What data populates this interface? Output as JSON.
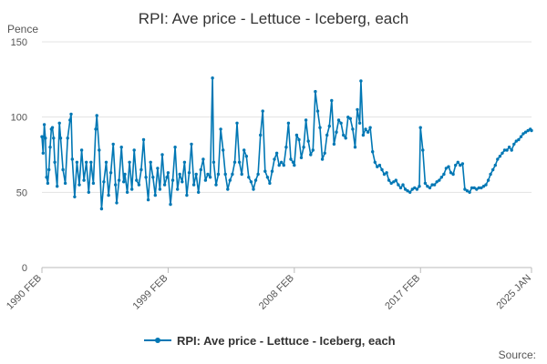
{
  "chart_data": {
    "type": "line",
    "title": "RPI: Ave price - Lettuce - Iceberg, each",
    "ylabel": "Pence",
    "xlabel": "",
    "ylim": [
      0,
      150
    ],
    "yticks": [
      0,
      50,
      100,
      150
    ],
    "xtick_labels": [
      "1990 FEB",
      "1999 FEB",
      "2008 FEB",
      "2017 FEB",
      "2025 JAN"
    ],
    "x_start": "1990-02",
    "x_end": "2025-01",
    "grid": "horizontal",
    "legend_position": "bottom-center",
    "color": "#0077b4",
    "series": [
      {
        "name": "RPI: Ave price - Lettuce - Iceberg, each",
        "points": [
          [
            "1990-02",
            87
          ],
          [
            "1990-03",
            76
          ],
          [
            "1990-04",
            95
          ],
          [
            "1990-05",
            86
          ],
          [
            "1990-06",
            60
          ],
          [
            "1990-07",
            56
          ],
          [
            "1990-08",
            65
          ],
          [
            "1990-09",
            80
          ],
          [
            "1990-10",
            92
          ],
          [
            "1990-11",
            93
          ],
          [
            "1990-12",
            86
          ],
          [
            "1991-01",
            70
          ],
          [
            "1991-03",
            54
          ],
          [
            "1991-05",
            96
          ],
          [
            "1991-06",
            86
          ],
          [
            "1991-08",
            65
          ],
          [
            "1991-10",
            56
          ],
          [
            "1991-12",
            86
          ],
          [
            "1992-02",
            98
          ],
          [
            "1992-03",
            102
          ],
          [
            "1992-04",
            72
          ],
          [
            "1992-06",
            47
          ],
          [
            "1992-08",
            70
          ],
          [
            "1992-10",
            55
          ],
          [
            "1992-12",
            78
          ],
          [
            "1993-02",
            58
          ],
          [
            "1993-04",
            70
          ],
          [
            "1993-06",
            50
          ],
          [
            "1993-08",
            70
          ],
          [
            "1993-10",
            56
          ],
          [
            "1993-12",
            92
          ],
          [
            "1994-01",
            101
          ],
          [
            "1994-03",
            78
          ],
          [
            "1994-05",
            39
          ],
          [
            "1994-07",
            57
          ],
          [
            "1994-09",
            70
          ],
          [
            "1994-11",
            48
          ],
          [
            "1995-01",
            63
          ],
          [
            "1995-03",
            82
          ],
          [
            "1995-05",
            55
          ],
          [
            "1995-06",
            43
          ],
          [
            "1995-08",
            58
          ],
          [
            "1995-10",
            80
          ],
          [
            "1995-12",
            57
          ],
          [
            "1996-01",
            62
          ],
          [
            "1996-03",
            50
          ],
          [
            "1996-05",
            70
          ],
          [
            "1996-07",
            52
          ],
          [
            "1996-09",
            78
          ],
          [
            "1996-11",
            58
          ],
          [
            "1997-01",
            55
          ],
          [
            "1997-03",
            65
          ],
          [
            "1997-05",
            85
          ],
          [
            "1997-07",
            60
          ],
          [
            "1997-09",
            45
          ],
          [
            "1997-11",
            70
          ],
          [
            "1998-01",
            60
          ],
          [
            "1998-03",
            48
          ],
          [
            "1998-05",
            66
          ],
          [
            "1998-07",
            52
          ],
          [
            "1998-09",
            75
          ],
          [
            "1998-11",
            55
          ],
          [
            "1999-01",
            60
          ],
          [
            "1999-02",
            63
          ],
          [
            "1999-04",
            42
          ],
          [
            "1999-06",
            58
          ],
          [
            "1999-08",
            80
          ],
          [
            "1999-10",
            52
          ],
          [
            "1999-12",
            62
          ],
          [
            "2000-02",
            57
          ],
          [
            "2000-04",
            70
          ],
          [
            "2000-06",
            48
          ],
          [
            "2000-08",
            63
          ],
          [
            "2000-10",
            82
          ],
          [
            "2000-12",
            55
          ],
          [
            "2001-02",
            62
          ],
          [
            "2001-04",
            50
          ],
          [
            "2001-06",
            65
          ],
          [
            "2001-08",
            72
          ],
          [
            "2001-10",
            58
          ],
          [
            "2001-12",
            62
          ],
          [
            "2002-02",
            60
          ],
          [
            "2002-04",
            126
          ],
          [
            "2002-05",
            70
          ],
          [
            "2002-07",
            55
          ],
          [
            "2002-09",
            62
          ],
          [
            "2002-11",
            92
          ],
          [
            "2003-01",
            78
          ],
          [
            "2003-03",
            62
          ],
          [
            "2003-05",
            52
          ],
          [
            "2003-07",
            58
          ],
          [
            "2003-09",
            62
          ],
          [
            "2003-11",
            70
          ],
          [
            "2004-01",
            96
          ],
          [
            "2004-03",
            70
          ],
          [
            "2004-05",
            62
          ],
          [
            "2004-07",
            78
          ],
          [
            "2004-09",
            74
          ],
          [
            "2004-11",
            60
          ],
          [
            "2005-01",
            57
          ],
          [
            "2005-03",
            52
          ],
          [
            "2005-05",
            58
          ],
          [
            "2005-07",
            62
          ],
          [
            "2005-09",
            88
          ],
          [
            "2005-11",
            104
          ],
          [
            "2006-01",
            64
          ],
          [
            "2006-03",
            60
          ],
          [
            "2006-05",
            56
          ],
          [
            "2006-07",
            64
          ],
          [
            "2006-09",
            72
          ],
          [
            "2006-11",
            76
          ],
          [
            "2007-01",
            68
          ],
          [
            "2007-03",
            70
          ],
          [
            "2007-05",
            68
          ],
          [
            "2007-07",
            80
          ],
          [
            "2007-09",
            96
          ],
          [
            "2007-11",
            72
          ],
          [
            "2008-01",
            70
          ],
          [
            "2008-02",
            68
          ],
          [
            "2008-04",
            88
          ],
          [
            "2008-06",
            85
          ],
          [
            "2008-08",
            73
          ],
          [
            "2008-10",
            80
          ],
          [
            "2008-12",
            98
          ],
          [
            "2009-02",
            84
          ],
          [
            "2009-04",
            75
          ],
          [
            "2009-06",
            78
          ],
          [
            "2009-08",
            117
          ],
          [
            "2009-10",
            104
          ],
          [
            "2009-12",
            93
          ],
          [
            "2010-02",
            72
          ],
          [
            "2010-04",
            76
          ],
          [
            "2010-06",
            88
          ],
          [
            "2010-08",
            94
          ],
          [
            "2010-10",
            111
          ],
          [
            "2010-12",
            82
          ],
          [
            "2011-02",
            90
          ],
          [
            "2011-04",
            98
          ],
          [
            "2011-06",
            96
          ],
          [
            "2011-08",
            88
          ],
          [
            "2011-10",
            86
          ],
          [
            "2011-12",
            100
          ],
          [
            "2012-02",
            99
          ],
          [
            "2012-04",
            92
          ],
          [
            "2012-06",
            80
          ],
          [
            "2012-08",
            105
          ],
          [
            "2012-10",
            96
          ],
          [
            "2012-11",
            124
          ],
          [
            "2013-01",
            88
          ],
          [
            "2013-03",
            92
          ],
          [
            "2013-05",
            90
          ],
          [
            "2013-07",
            93
          ],
          [
            "2013-09",
            77
          ],
          [
            "2013-11",
            70
          ],
          [
            "2014-01",
            67
          ],
          [
            "2014-03",
            68
          ],
          [
            "2014-05",
            65
          ],
          [
            "2014-07",
            62
          ],
          [
            "2014-09",
            63
          ],
          [
            "2014-11",
            58
          ],
          [
            "2015-01",
            56
          ],
          [
            "2015-03",
            57
          ],
          [
            "2015-05",
            58
          ],
          [
            "2015-07",
            55
          ],
          [
            "2015-09",
            53
          ],
          [
            "2015-11",
            55
          ],
          [
            "2016-01",
            52
          ],
          [
            "2016-03",
            51
          ],
          [
            "2016-05",
            50
          ],
          [
            "2016-07",
            52
          ],
          [
            "2016-09",
            53
          ],
          [
            "2016-11",
            52
          ],
          [
            "2017-01",
            54
          ],
          [
            "2017-02",
            93
          ],
          [
            "2017-04",
            78
          ],
          [
            "2017-06",
            56
          ],
          [
            "2017-08",
            54
          ],
          [
            "2017-10",
            53
          ],
          [
            "2017-12",
            55
          ],
          [
            "2018-02",
            55
          ],
          [
            "2018-04",
            57
          ],
          [
            "2018-06",
            58
          ],
          [
            "2018-08",
            60
          ],
          [
            "2018-10",
            62
          ],
          [
            "2018-12",
            66
          ],
          [
            "2019-02",
            67
          ],
          [
            "2019-04",
            63
          ],
          [
            "2019-06",
            62
          ],
          [
            "2019-08",
            68
          ],
          [
            "2019-10",
            70
          ],
          [
            "2019-12",
            68
          ],
          [
            "2020-02",
            69
          ],
          [
            "2020-04",
            52
          ],
          [
            "2020-06",
            51
          ],
          [
            "2020-08",
            50
          ],
          [
            "2020-10",
            53
          ],
          [
            "2020-12",
            53
          ],
          [
            "2021-02",
            52
          ],
          [
            "2021-04",
            53
          ],
          [
            "2021-06",
            53
          ],
          [
            "2021-08",
            54
          ],
          [
            "2021-10",
            55
          ],
          [
            "2021-12",
            58
          ],
          [
            "2022-02",
            62
          ],
          [
            "2022-04",
            65
          ],
          [
            "2022-06",
            68
          ],
          [
            "2022-08",
            72
          ],
          [
            "2022-10",
            74
          ],
          [
            "2022-12",
            76
          ],
          [
            "2023-02",
            78
          ],
          [
            "2023-04",
            78
          ],
          [
            "2023-06",
            80
          ],
          [
            "2023-08",
            78
          ],
          [
            "2023-10",
            82
          ],
          [
            "2023-12",
            84
          ],
          [
            "2024-02",
            85
          ],
          [
            "2024-04",
            87
          ],
          [
            "2024-06",
            89
          ],
          [
            "2024-08",
            90
          ],
          [
            "2024-10",
            91
          ],
          [
            "2024-12",
            92
          ],
          [
            "2025-01",
            91
          ]
        ]
      }
    ],
    "source_label": "Source:"
  }
}
